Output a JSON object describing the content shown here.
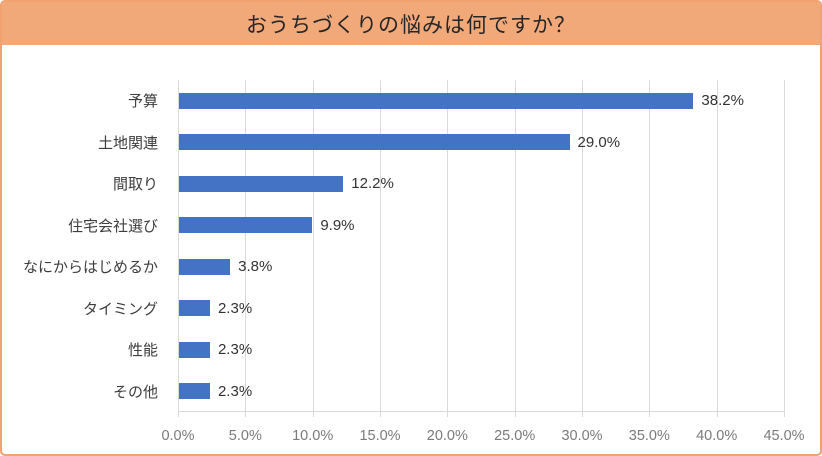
{
  "header": {
    "title": "おうちづくりの悩みは何ですか？"
  },
  "chart_data": {
    "type": "bar",
    "orientation": "horizontal",
    "title": "おうちづくりの悩みは何ですか？",
    "categories": [
      "予算",
      "土地関連",
      "間取り",
      "住宅会社選び",
      "なにからはじめるか",
      "タイミング",
      "性能",
      "その他"
    ],
    "values": [
      38.2,
      29.0,
      12.2,
      9.9,
      3.8,
      2.3,
      2.3,
      2.3
    ],
    "data_labels": [
      "38.2%",
      "29.0%",
      "12.2%",
      "9.9%",
      "3.8%",
      "2.3%",
      "2.3%",
      "2.3%"
    ],
    "x_ticks": [
      "0.0%",
      "5.0%",
      "10.0%",
      "15.0%",
      "20.0%",
      "25.0%",
      "30.0%",
      "35.0%",
      "40.0%",
      "45.0%"
    ],
    "xlim": [
      0,
      45
    ],
    "x_tick_step": 5,
    "grid": true,
    "legend": false,
    "colors": {
      "bar": "#4472c4",
      "gridline": "#d9d9d9",
      "tick_label": "#7a7a7a",
      "category_label": "#3d3d3d",
      "data_label": "#333333",
      "header_bg": "#f2a97a",
      "frame_border": "#f0a271",
      "title_text": "#262626"
    }
  }
}
